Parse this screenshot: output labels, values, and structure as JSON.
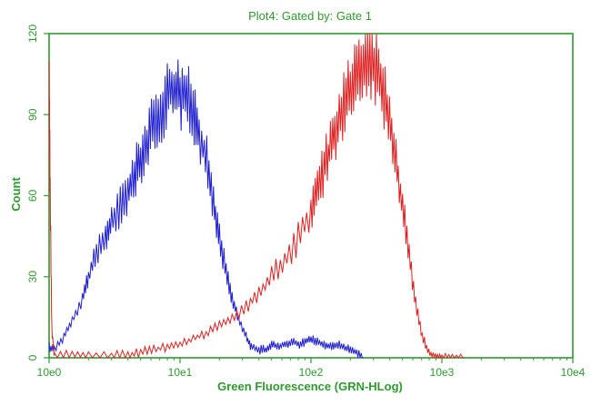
{
  "colors": {
    "frame": "#2e9a2e",
    "text": "#2e9a2e",
    "series_blue": "#1f1fd0",
    "series_red": "#e02020"
  },
  "chart_data": {
    "type": "line",
    "title": "Plot4:  Gated by: Gate 1",
    "xlabel": "Green Fluorescence (GRN-HLog)",
    "ylabel": "Count",
    "x_scale": "log",
    "xlim": [
      1,
      10000
    ],
    "ylim": [
      0,
      120
    ],
    "x_ticks": [
      "10e0",
      "10e1",
      "10e2",
      "10e3",
      "10e4"
    ],
    "y_ticks": [
      "0",
      "30",
      "60",
      "90",
      "120"
    ],
    "grid": false,
    "legend": "none",
    "series": [
      {
        "color": "blue",
        "x": [
          1.0,
          1.1,
          1.3,
          1.5,
          1.8,
          2.0,
          2.3,
          2.7,
          3.0,
          3.5,
          4.0,
          4.5,
          5.0,
          5.6,
          6.3,
          7.1,
          8.0,
          9.0,
          10,
          11.2,
          12.6,
          14,
          16,
          18,
          20,
          22.5,
          25,
          28,
          32,
          35,
          40,
          45,
          50,
          56,
          63,
          71,
          80,
          90,
          100,
          112,
          126,
          141,
          158,
          178,
          200,
          224,
          251
        ],
        "y": [
          4,
          3,
          8,
          14,
          22,
          30,
          38,
          45,
          50,
          56,
          62,
          68,
          74,
          80,
          86,
          92,
          97,
          100,
          98,
          96,
          92,
          84,
          72,
          58,
          44,
          32,
          22,
          14,
          8,
          4,
          3,
          3,
          5,
          4,
          5,
          6,
          5,
          6,
          7,
          6,
          5,
          4,
          5,
          4,
          3,
          2,
          0
        ]
      },
      {
        "color": "red",
        "x": [
          1.0,
          1.02,
          1.05,
          1.1,
          1.5,
          2.0,
          3.0,
          4.0,
          5.0,
          6.3,
          8.0,
          10,
          12.6,
          15.8,
          20,
          25,
          32,
          40,
          50,
          63,
          80,
          100,
          112,
          126,
          141,
          158,
          178,
          200,
          224,
          251,
          282,
          316,
          355,
          398,
          447,
          501,
          562,
          631,
          708,
          794,
          891,
          1000,
          1200,
          1500
        ],
        "y": [
          104,
          60,
          10,
          1,
          1,
          1,
          1,
          1,
          2,
          3,
          4,
          5,
          7,
          9,
          12,
          15,
          19,
          24,
          30,
          36,
          44,
          54,
          62,
          70,
          78,
          86,
          94,
          100,
          106,
          110,
          111,
          108,
          100,
          88,
          72,
          56,
          38,
          20,
          8,
          2,
          0,
          0,
          0,
          0
        ]
      }
    ]
  }
}
